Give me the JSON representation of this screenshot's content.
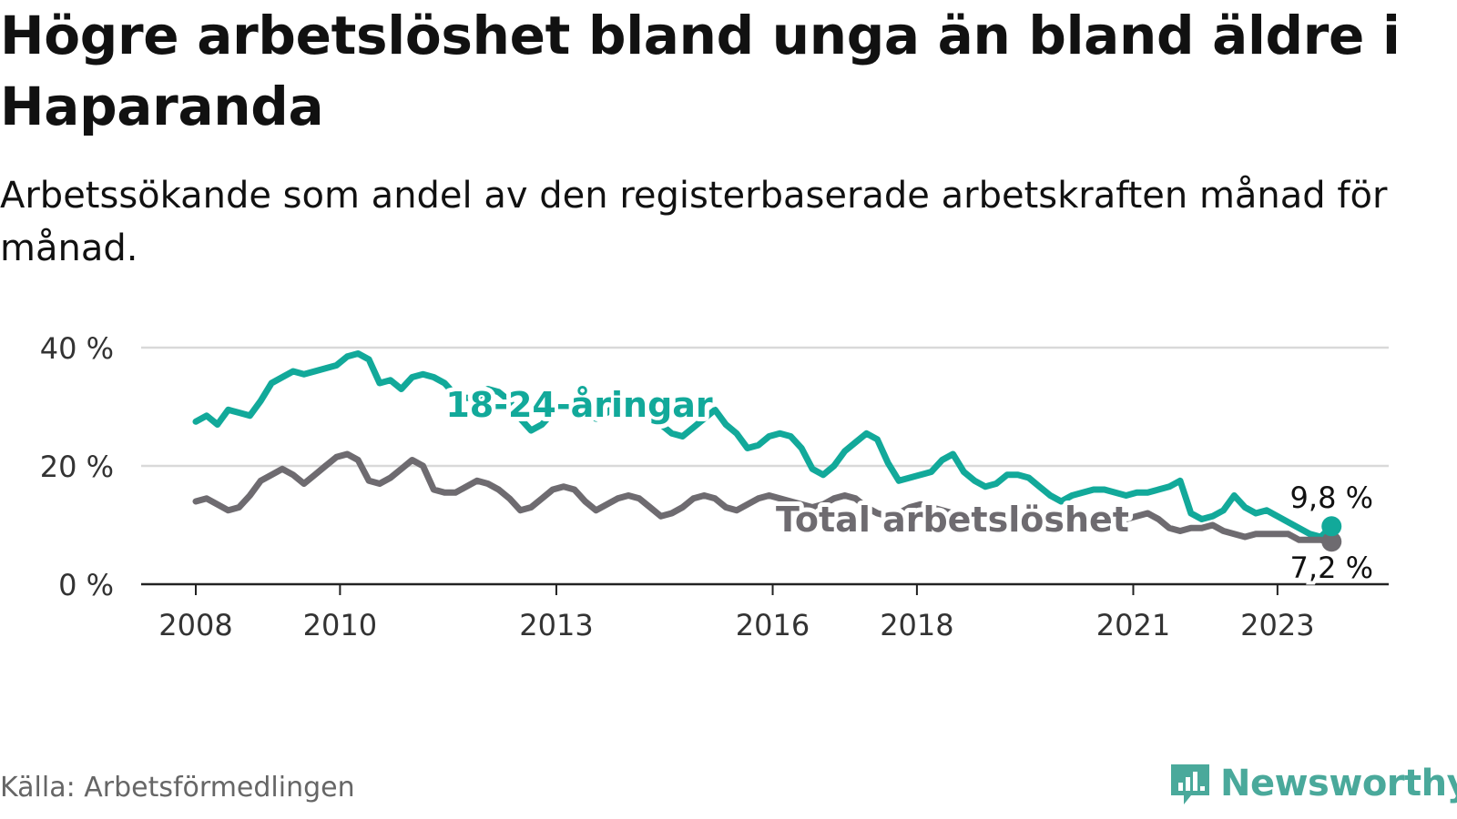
{
  "title": "Högre arbetslöshet bland unga än bland äldre i Haparanda",
  "subtitle": "Arbetssökande som andel av den registerbaserade arbetskraften månad för månad.",
  "source": "Källa: Arbetsförmedlingen",
  "brand": "Newsworthy",
  "colors": {
    "youth": "#12a99a",
    "total": "#6e6b70",
    "grid": "#d9d9d9",
    "axis": "#222222",
    "brand": "#4aa99b"
  },
  "chart_data": {
    "type": "line",
    "title": "Högre arbetslöshet bland unga än bland äldre i Haparanda",
    "xlabel": "",
    "ylabel": "",
    "xlim": [
      2008.0,
      2025.3
    ],
    "ylim": [
      0,
      40
    ],
    "y_ticks": [
      0,
      20,
      40
    ],
    "y_tick_labels": [
      "0 %",
      "20 %",
      "40 %"
    ],
    "x_ticks": [
      2008,
      2010,
      2013,
      2016,
      2018,
      2021,
      2023
    ],
    "x_tick_labels": [
      "2008",
      "2010",
      "2013",
      "2016",
      "2018",
      "2021",
      "2023"
    ],
    "grid": true,
    "series": [
      {
        "name": "18-24-åringar",
        "label": "18-24-åringar",
        "color": "#12a99a",
        "end_label": "9,8 %",
        "x": [
          2008.0,
          2008.15,
          2008.3,
          2008.45,
          2008.6,
          2008.75,
          2008.9,
          2009.05,
          2009.2,
          2009.35,
          2009.5,
          2009.65,
          2009.8,
          2009.95,
          2010.1,
          2010.25,
          2010.4,
          2010.55,
          2010.7,
          2010.85,
          2011.0,
          2011.15,
          2011.3,
          2011.45,
          2011.6,
          2011.75,
          2011.9,
          2012.05,
          2012.2,
          2012.35,
          2012.5,
          2012.65,
          2012.8,
          2012.95,
          2013.1,
          2013.25,
          2013.4,
          2013.55,
          2013.7,
          2013.85,
          2014.0,
          2014.15,
          2014.3,
          2014.45,
          2014.6,
          2014.75,
          2014.9,
          2015.05,
          2015.2,
          2015.35,
          2015.5,
          2015.65,
          2015.8,
          2015.95,
          2016.1,
          2016.25,
          2016.4,
          2016.55,
          2016.7,
          2016.85,
          2017.0,
          2017.15,
          2017.3,
          2017.45,
          2017.6,
          2017.75,
          2017.9,
          2018.05,
          2018.2,
          2018.35,
          2018.5,
          2018.65,
          2018.8,
          2018.95,
          2019.1,
          2019.25,
          2019.4,
          2019.55,
          2019.7,
          2019.85,
          2020.0,
          2020.15,
          2020.3,
          2020.45,
          2020.6,
          2020.75,
          2020.9,
          2021.05,
          2021.2,
          2021.35,
          2021.5,
          2021.65,
          2021.8,
          2021.95,
          2022.1,
          2022.25,
          2022.4,
          2022.55,
          2022.7,
          2022.85,
          2023.0,
          2023.15,
          2023.3,
          2023.45,
          2023.6,
          2023.75
        ],
        "values": [
          27.5,
          28.5,
          27.0,
          29.5,
          29.0,
          28.5,
          31.0,
          34.0,
          35.0,
          36.0,
          35.5,
          36.0,
          36.5,
          37.0,
          38.5,
          39.0,
          38.0,
          34.0,
          34.5,
          33.0,
          35.0,
          35.5,
          35.0,
          34.0,
          32.0,
          31.5,
          31.5,
          33.0,
          32.5,
          31.0,
          28.0,
          26.0,
          27.0,
          29.0,
          30.0,
          30.0,
          29.0,
          28.0,
          29.0,
          30.5,
          31.0,
          30.0,
          28.5,
          27.0,
          25.5,
          25.0,
          26.5,
          28.0,
          29.5,
          27.0,
          25.5,
          23.0,
          23.5,
          25.0,
          25.5,
          25.0,
          23.0,
          19.5,
          18.5,
          20.0,
          22.5,
          24.0,
          25.5,
          24.5,
          20.5,
          17.5,
          18.0,
          18.5,
          19.0,
          21.0,
          22.0,
          19.0,
          17.5,
          16.5,
          17.0,
          18.5,
          18.5,
          18.0,
          16.5,
          15.0,
          14.0,
          15.0,
          15.5,
          16.0,
          16.0,
          15.5,
          15.0,
          15.5,
          15.5,
          16.0,
          16.5,
          17.5,
          12.0,
          11.0,
          11.5,
          12.5,
          15.0,
          13.0,
          12.0,
          12.5,
          11.5,
          10.5,
          9.5,
          8.5,
          8.0,
          9.8
        ]
      },
      {
        "name": "Total arbetslöshet",
        "label": "Total arbetslöshet",
        "color": "#6e6b70",
        "end_label": "7,2 %",
        "x": [
          2008.0,
          2008.15,
          2008.3,
          2008.45,
          2008.6,
          2008.75,
          2008.9,
          2009.05,
          2009.2,
          2009.35,
          2009.5,
          2009.65,
          2009.8,
          2009.95,
          2010.1,
          2010.25,
          2010.4,
          2010.55,
          2010.7,
          2010.85,
          2011.0,
          2011.15,
          2011.3,
          2011.45,
          2011.6,
          2011.75,
          2011.9,
          2012.05,
          2012.2,
          2012.35,
          2012.5,
          2012.65,
          2012.8,
          2012.95,
          2013.1,
          2013.25,
          2013.4,
          2013.55,
          2013.7,
          2013.85,
          2014.0,
          2014.15,
          2014.3,
          2014.45,
          2014.6,
          2014.75,
          2014.9,
          2015.05,
          2015.2,
          2015.35,
          2015.5,
          2015.65,
          2015.8,
          2015.95,
          2016.1,
          2016.25,
          2016.4,
          2016.55,
          2016.7,
          2016.85,
          2017.0,
          2017.15,
          2017.3,
          2017.45,
          2017.6,
          2017.75,
          2017.9,
          2018.05,
          2018.2,
          2018.35,
          2018.5,
          2018.65,
          2018.8,
          2018.95,
          2019.1,
          2019.25,
          2019.4,
          2019.55,
          2019.7,
          2019.85,
          2020.0,
          2020.15,
          2020.3,
          2020.45,
          2020.6,
          2020.75,
          2020.9,
          2021.05,
          2021.2,
          2021.35,
          2021.5,
          2021.65,
          2021.8,
          2021.95,
          2022.1,
          2022.25,
          2022.4,
          2022.55,
          2022.7,
          2022.85,
          2023.0,
          2023.15,
          2023.3,
          2023.45,
          2023.6,
          2023.75
        ],
        "values": [
          14.0,
          14.5,
          13.5,
          12.5,
          13.0,
          15.0,
          17.5,
          18.5,
          19.5,
          18.5,
          17.0,
          18.5,
          20.0,
          21.5,
          22.0,
          21.0,
          17.5,
          17.0,
          18.0,
          19.5,
          21.0,
          20.0,
          16.0,
          15.5,
          15.5,
          16.5,
          17.5,
          17.0,
          16.0,
          14.5,
          12.5,
          13.0,
          14.5,
          16.0,
          16.5,
          16.0,
          14.0,
          12.5,
          13.5,
          14.5,
          15.0,
          14.5,
          13.0,
          11.5,
          12.0,
          13.0,
          14.5,
          15.0,
          14.5,
          13.0,
          12.5,
          13.5,
          14.5,
          15.0,
          14.5,
          14.0,
          13.5,
          13.0,
          13.5,
          14.5,
          15.0,
          14.5,
          13.0,
          12.0,
          11.5,
          12.0,
          13.0,
          13.5,
          13.0,
          12.5,
          12.0,
          11.5,
          11.0,
          11.5,
          12.0,
          11.5,
          11.0,
          10.5,
          11.0,
          11.5,
          12.0,
          11.5,
          11.0,
          11.0,
          11.5,
          11.5,
          11.0,
          11.5,
          12.0,
          11.0,
          9.5,
          9.0,
          9.5,
          9.5,
          10.0,
          9.0,
          8.5,
          8.0,
          8.5,
          8.5,
          8.5,
          8.5,
          7.5,
          7.5,
          7.5,
          7.2
        ]
      }
    ]
  }
}
